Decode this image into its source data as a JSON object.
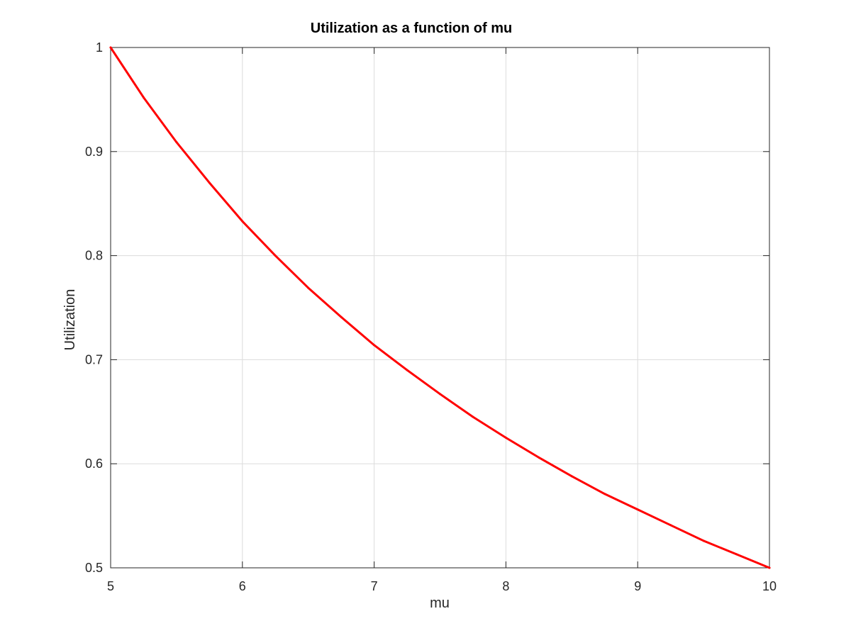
{
  "chart_data": {
    "type": "line",
    "title": "Utilization as a function of mu",
    "xlabel": "mu",
    "ylabel": "Utilization",
    "xlim": [
      5,
      10
    ],
    "ylim": [
      0.5,
      1
    ],
    "xticks": [
      5,
      6,
      7,
      8,
      9,
      10
    ],
    "yticks": [
      0.5,
      0.6,
      0.7,
      0.8,
      0.9,
      1
    ],
    "xtick_labels": [
      "5",
      "6",
      "7",
      "8",
      "9",
      "10"
    ],
    "ytick_labels": [
      "0.5",
      "0.6",
      "0.7",
      "0.8",
      "0.9",
      "1"
    ],
    "grid": true,
    "series": [
      {
        "color": "#ff0000",
        "x": [
          5,
          5.25,
          5.5,
          5.75,
          6,
          6.25,
          6.5,
          6.75,
          7,
          7.25,
          7.5,
          7.75,
          8,
          8.25,
          8.5,
          8.75,
          9,
          9.25,
          9.5,
          9.75,
          10
        ],
        "y": [
          1,
          0.952,
          0.909,
          0.87,
          0.833,
          0.8,
          0.769,
          0.741,
          0.714,
          0.69,
          0.667,
          0.645,
          0.625,
          0.606,
          0.588,
          0.571,
          0.556,
          0.541,
          0.526,
          0.513,
          0.5
        ]
      }
    ]
  }
}
